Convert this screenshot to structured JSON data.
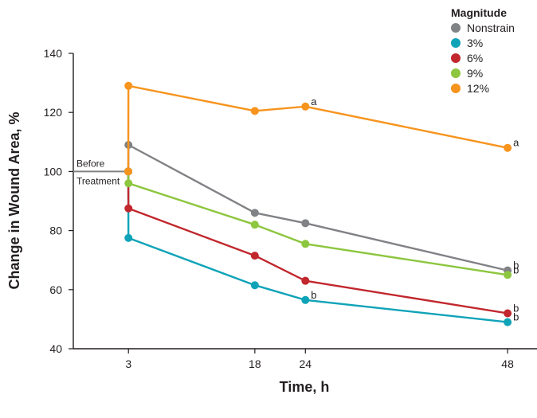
{
  "chart_data": {
    "type": "line",
    "title": "",
    "xlabel": "Time, h",
    "ylabel": "Change in Wound Area, %",
    "ylim": [
      40,
      140
    ],
    "yticks": [
      40,
      60,
      80,
      100,
      120,
      140
    ],
    "x_tick_values": [
      3,
      18,
      24,
      48
    ],
    "x_tick_labels": [
      "3",
      "18",
      "24",
      "48"
    ],
    "x": [
      "Before Treatment",
      3,
      18,
      24,
      48
    ],
    "before_label_line1": "Before",
    "before_label_line2": "Treatment",
    "legend_title": "Magnitude",
    "legend_position": "top-right",
    "grid": false,
    "series": [
      {
        "name": "Nonstrain",
        "color": "#808285",
        "values": [
          100,
          109,
          86,
          82.5,
          66.5
        ]
      },
      {
        "name": "3%",
        "color": "#0fa3b8",
        "values": [
          100,
          77.5,
          61.5,
          56.5,
          49
        ]
      },
      {
        "name": "6%",
        "color": "#c1272d",
        "values": [
          100,
          87.5,
          71.5,
          63,
          52
        ]
      },
      {
        "name": "9%",
        "color": "#8dc63f",
        "values": [
          100,
          96,
          82,
          75.5,
          65
        ]
      },
      {
        "name": "12%",
        "color": "#f7941d",
        "values": [
          100,
          129,
          120.5,
          122,
          108
        ]
      }
    ],
    "annotations": [
      {
        "text": "a",
        "series": "12%",
        "x": 24
      },
      {
        "text": "a",
        "series": "12%",
        "x": 48
      },
      {
        "text": "b",
        "series": "3%",
        "x": 24
      },
      {
        "text": "b",
        "series": "Nonstrain",
        "x": 48
      },
      {
        "text": "b",
        "series": "9%",
        "x": 48
      },
      {
        "text": "b",
        "series": "6%",
        "x": 48
      },
      {
        "text": "b",
        "series": "3%",
        "x": 48
      }
    ]
  }
}
